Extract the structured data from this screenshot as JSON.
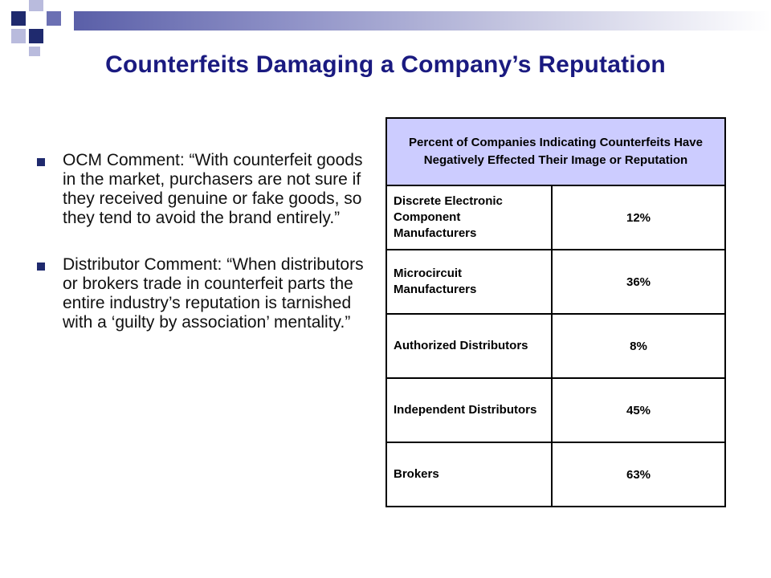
{
  "title": "Counterfeits Damaging a Company’s Reputation",
  "bullets": [
    "OCM Comment: “With counterfeit goods in the market, purchasers are not sure if they received genuine or fake goods, so they tend to avoid the brand entirely.”",
    "Distributor Comment: “When distributors or brokers trade in counterfeit parts the entire industry’s reputation is tarnished with a ‘guilty by association’ mentality.”"
  ],
  "table": {
    "header": "Percent of Companies Indicating Counterfeits Have Negatively Effected Their Image or Reputation",
    "rows": [
      {
        "label": "Discrete Electronic Component Manufacturers",
        "value": "12%"
      },
      {
        "label": "Microcircuit Manufacturers",
        "value": "36%"
      },
      {
        "label": "Authorized Distributors",
        "value": "8%"
      },
      {
        "label": "Independent Distributors",
        "value": "45%"
      },
      {
        "label": "Brokers",
        "value": "63%"
      }
    ]
  },
  "colors": {
    "title": "#1a1a80",
    "header_fill": "#ccccff",
    "decor_dark": "#1f2a6e",
    "decor_mid": "#6b70b3",
    "decor_light": "#b9bbdd"
  }
}
